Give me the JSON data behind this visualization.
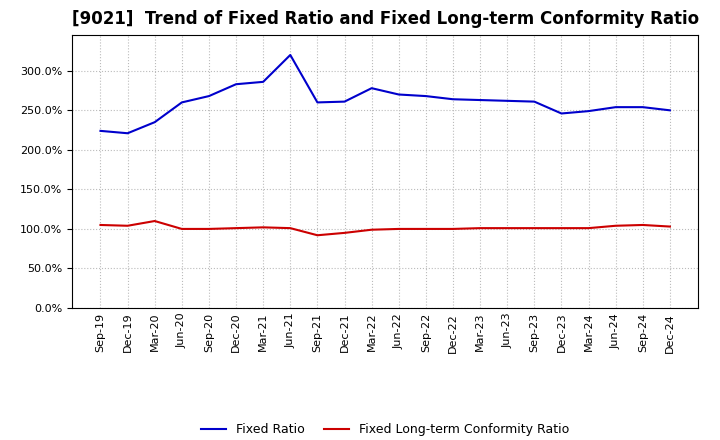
{
  "title": "[9021]  Trend of Fixed Ratio and Fixed Long-term Conformity Ratio",
  "x_labels": [
    "Sep-19",
    "Dec-19",
    "Mar-20",
    "Jun-20",
    "Sep-20",
    "Dec-20",
    "Mar-21",
    "Jun-21",
    "Sep-21",
    "Dec-21",
    "Mar-22",
    "Jun-22",
    "Sep-22",
    "Dec-22",
    "Mar-23",
    "Jun-23",
    "Sep-23",
    "Dec-23",
    "Mar-24",
    "Jun-24",
    "Sep-24",
    "Dec-24"
  ],
  "fixed_ratio": [
    224,
    221,
    235,
    260,
    268,
    283,
    286,
    320,
    260,
    261,
    278,
    270,
    268,
    264,
    263,
    262,
    261,
    246,
    249,
    254,
    254,
    250
  ],
  "fixed_lt_ratio": [
    105,
    104,
    110,
    100,
    100,
    101,
    102,
    101,
    92,
    95,
    99,
    100,
    100,
    100,
    101,
    101,
    101,
    101,
    101,
    104,
    105,
    103
  ],
  "fixed_ratio_color": "#0000cc",
  "fixed_lt_ratio_color": "#cc0000",
  "bg_color": "#ffffff",
  "plot_bg_color": "#ffffff",
  "grid_color": "#bbbbbb",
  "ylim": [
    0,
    345
  ],
  "yticks": [
    0.0,
    50.0,
    100.0,
    150.0,
    200.0,
    250.0,
    300.0
  ],
  "legend_fixed_ratio": "Fixed Ratio",
  "legend_fixed_lt_ratio": "Fixed Long-term Conformity Ratio",
  "title_fontsize": 12,
  "tick_fontsize": 8,
  "legend_fontsize": 9,
  "line_width": 1.5
}
